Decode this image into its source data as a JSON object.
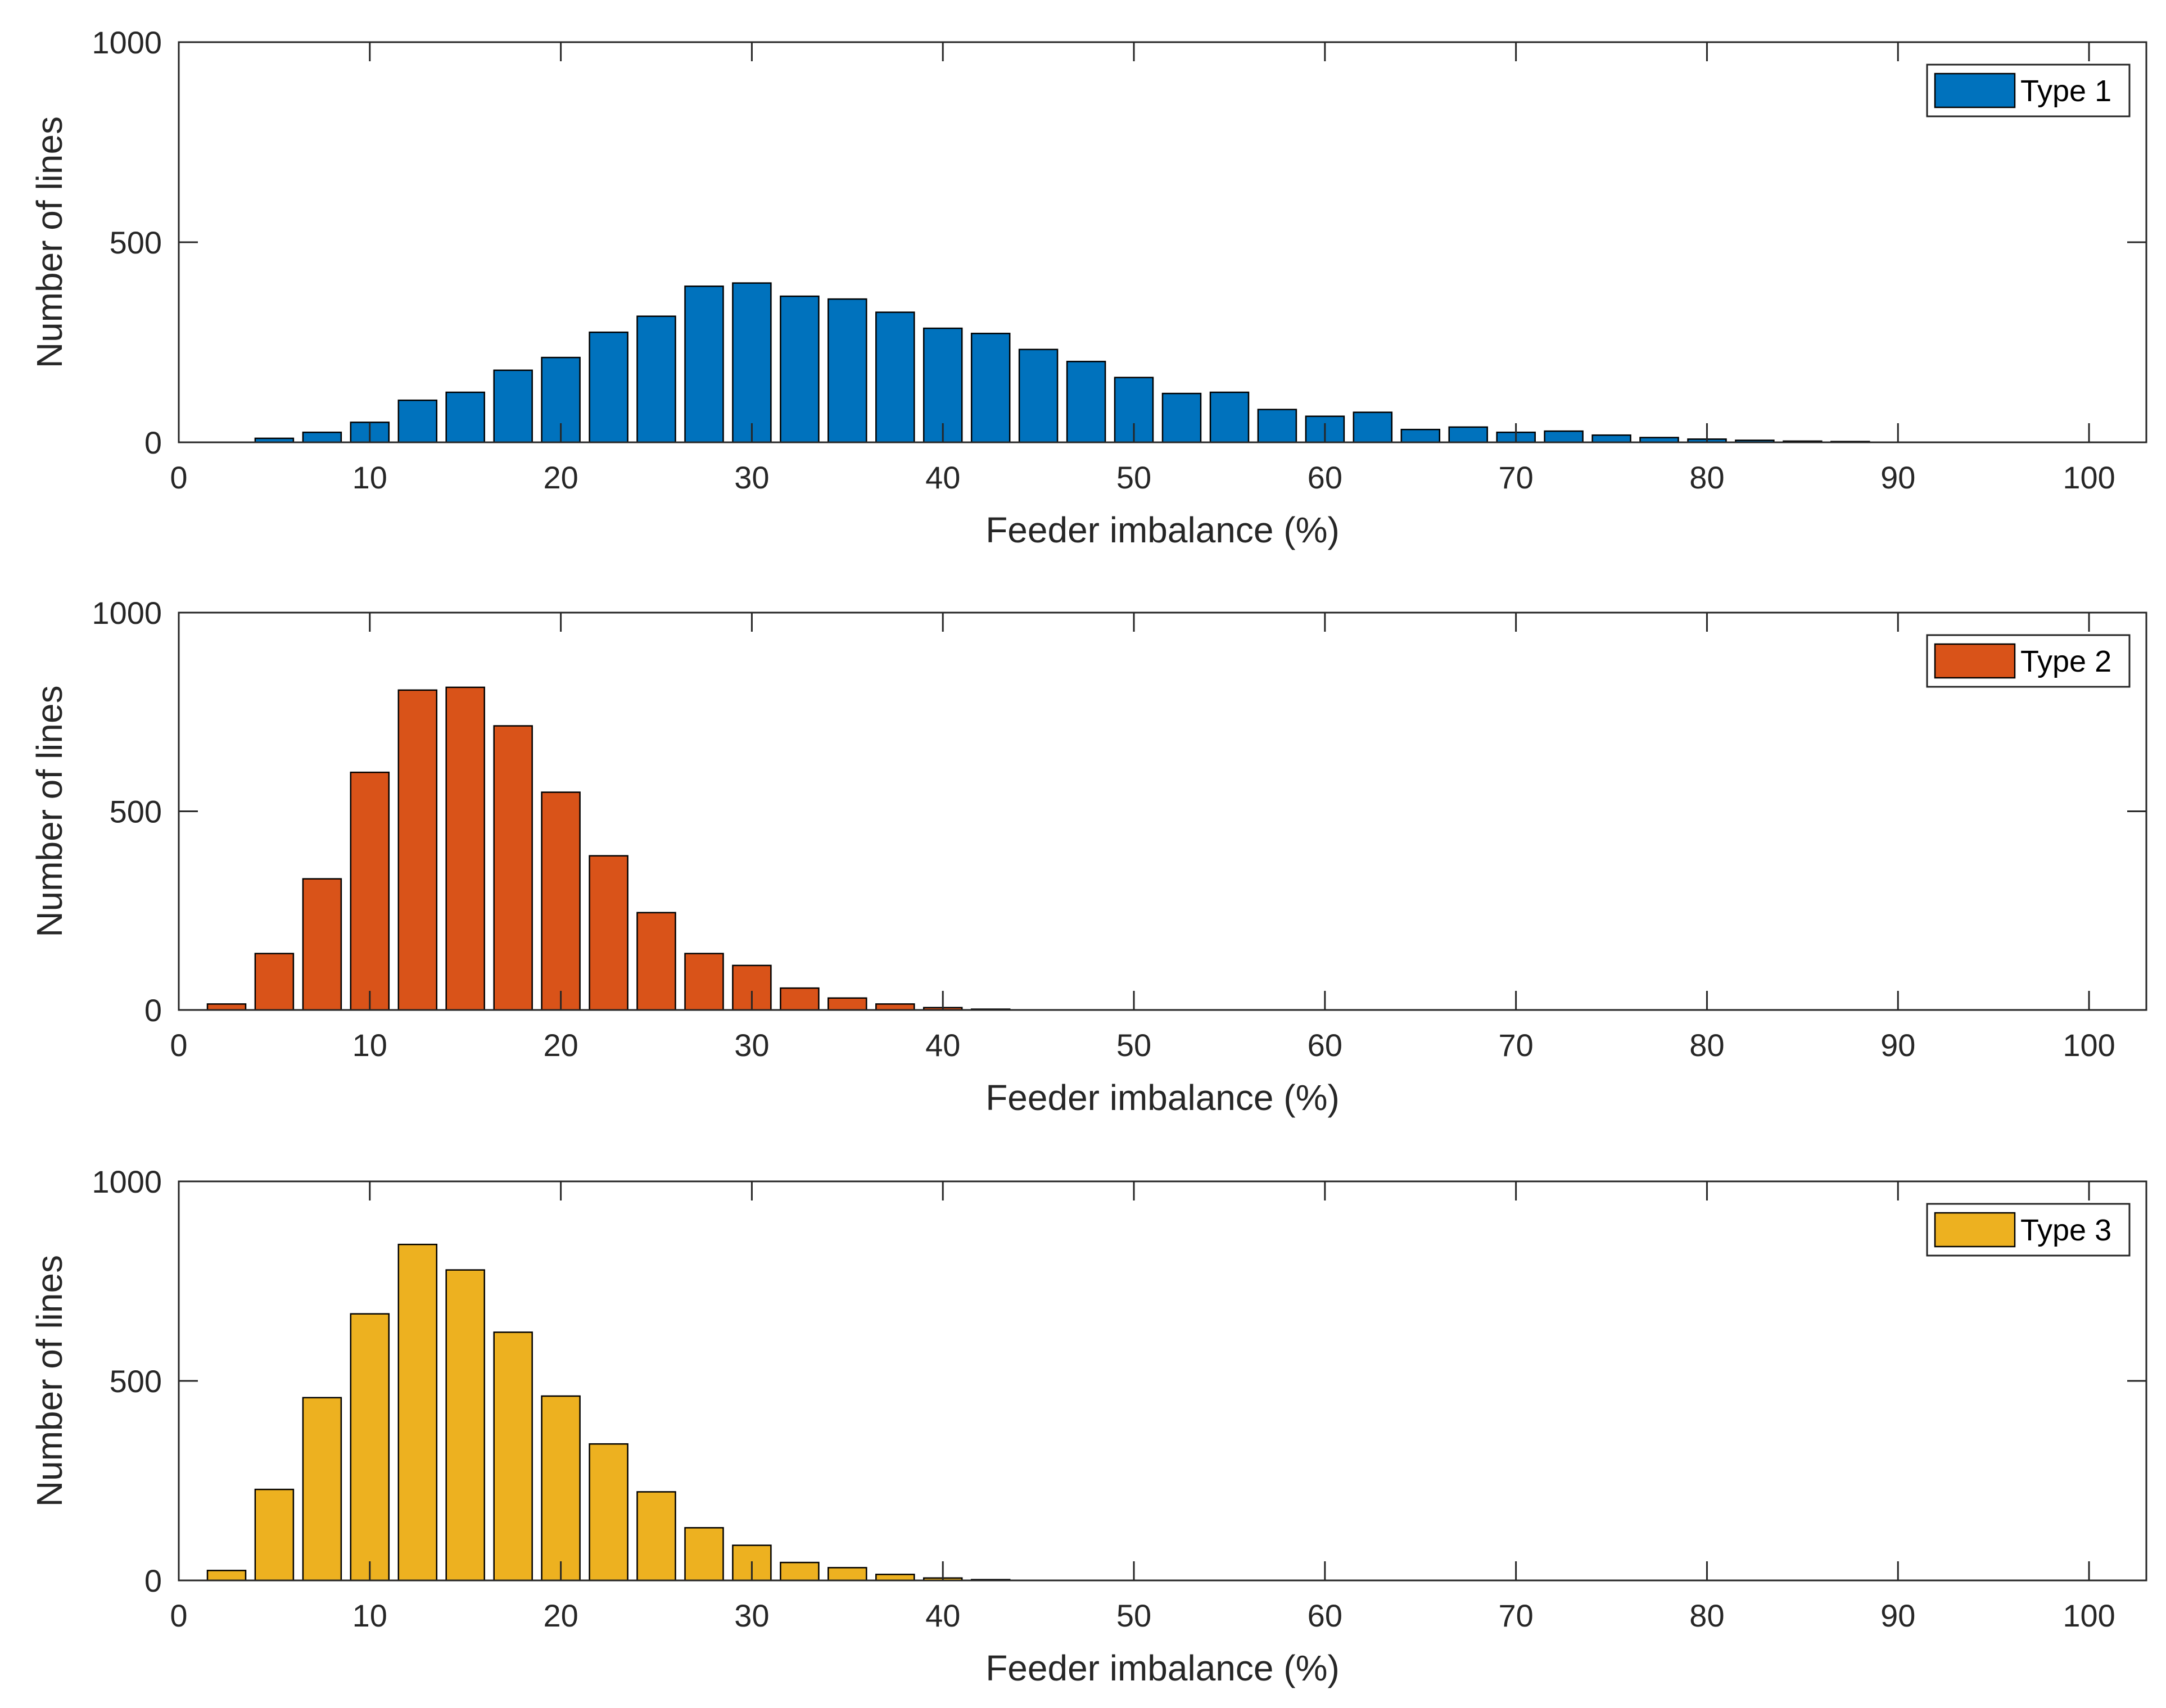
{
  "chart_data": [
    {
      "type": "bar",
      "xlabel": "Feeder imbalance (%)",
      "ylabel": "Number of lines",
      "xlim": [
        0,
        103
      ],
      "ylim": [
        0,
        1000
      ],
      "xticks": [
        "0",
        "10",
        "20",
        "30",
        "40",
        "50",
        "60",
        "70",
        "80",
        "90",
        "100"
      ],
      "yticks": [
        "0",
        "500",
        "1000"
      ],
      "legend": {
        "label": "Type 1",
        "position": "top-right"
      },
      "color": "#0072BD",
      "bin_width": 2.5,
      "x": [
        5,
        7.5,
        10,
        12.5,
        15,
        17.5,
        20,
        22.5,
        25,
        27.5,
        30,
        32.5,
        35,
        37.5,
        40,
        42.5,
        45,
        47.5,
        50,
        52.5,
        55,
        57.5,
        60,
        62.5,
        65,
        67.5,
        70,
        72.5,
        75,
        77.5,
        80,
        82.5,
        85,
        87.5
      ],
      "values": [
        10,
        25,
        50,
        105,
        125,
        180,
        212,
        275,
        315,
        390,
        398,
        365,
        358,
        325,
        285,
        272,
        232,
        202,
        162,
        122,
        125,
        82,
        65,
        75,
        32,
        38,
        25,
        28,
        18,
        12,
        8,
        5,
        3,
        2
      ]
    },
    {
      "type": "bar",
      "xlabel": "Feeder imbalance (%)",
      "ylabel": "Number of lines",
      "xlim": [
        0,
        103
      ],
      "ylim": [
        0,
        1000
      ],
      "xticks": [
        "0",
        "10",
        "20",
        "30",
        "40",
        "50",
        "60",
        "70",
        "80",
        "90",
        "100"
      ],
      "yticks": [
        "0",
        "500",
        "1000"
      ],
      "legend": {
        "label": "Type 2",
        "position": "top-right"
      },
      "color": "#D95319",
      "bin_width": 2.5,
      "x": [
        2.5,
        5,
        7.5,
        10,
        12.5,
        15,
        17.5,
        20,
        22.5,
        25,
        27.5,
        30,
        32.5,
        35,
        37.5,
        40,
        42.5
      ],
      "values": [
        15,
        142,
        330,
        598,
        805,
        812,
        715,
        548,
        388,
        245,
        142,
        112,
        55,
        30,
        15,
        6,
        2
      ]
    },
    {
      "type": "bar",
      "xlabel": "Feeder imbalance (%)",
      "ylabel": "Number of lines",
      "xlim": [
        0,
        103
      ],
      "ylim": [
        0,
        1000
      ],
      "xticks": [
        "0",
        "10",
        "20",
        "30",
        "40",
        "50",
        "60",
        "70",
        "80",
        "90",
        "100"
      ],
      "yticks": [
        "0",
        "500",
        "1000"
      ],
      "legend": {
        "label": "Type 3",
        "position": "top-right"
      },
      "color": "#EDB120",
      "bin_width": 2.5,
      "x": [
        2.5,
        5,
        7.5,
        10,
        12.5,
        15,
        17.5,
        20,
        22.5,
        25,
        27.5,
        30,
        32.5,
        35,
        37.5,
        40,
        42.5
      ],
      "values": [
        25,
        228,
        458,
        668,
        842,
        778,
        622,
        462,
        342,
        222,
        132,
        88,
        45,
        32,
        15,
        6,
        2
      ]
    }
  ]
}
